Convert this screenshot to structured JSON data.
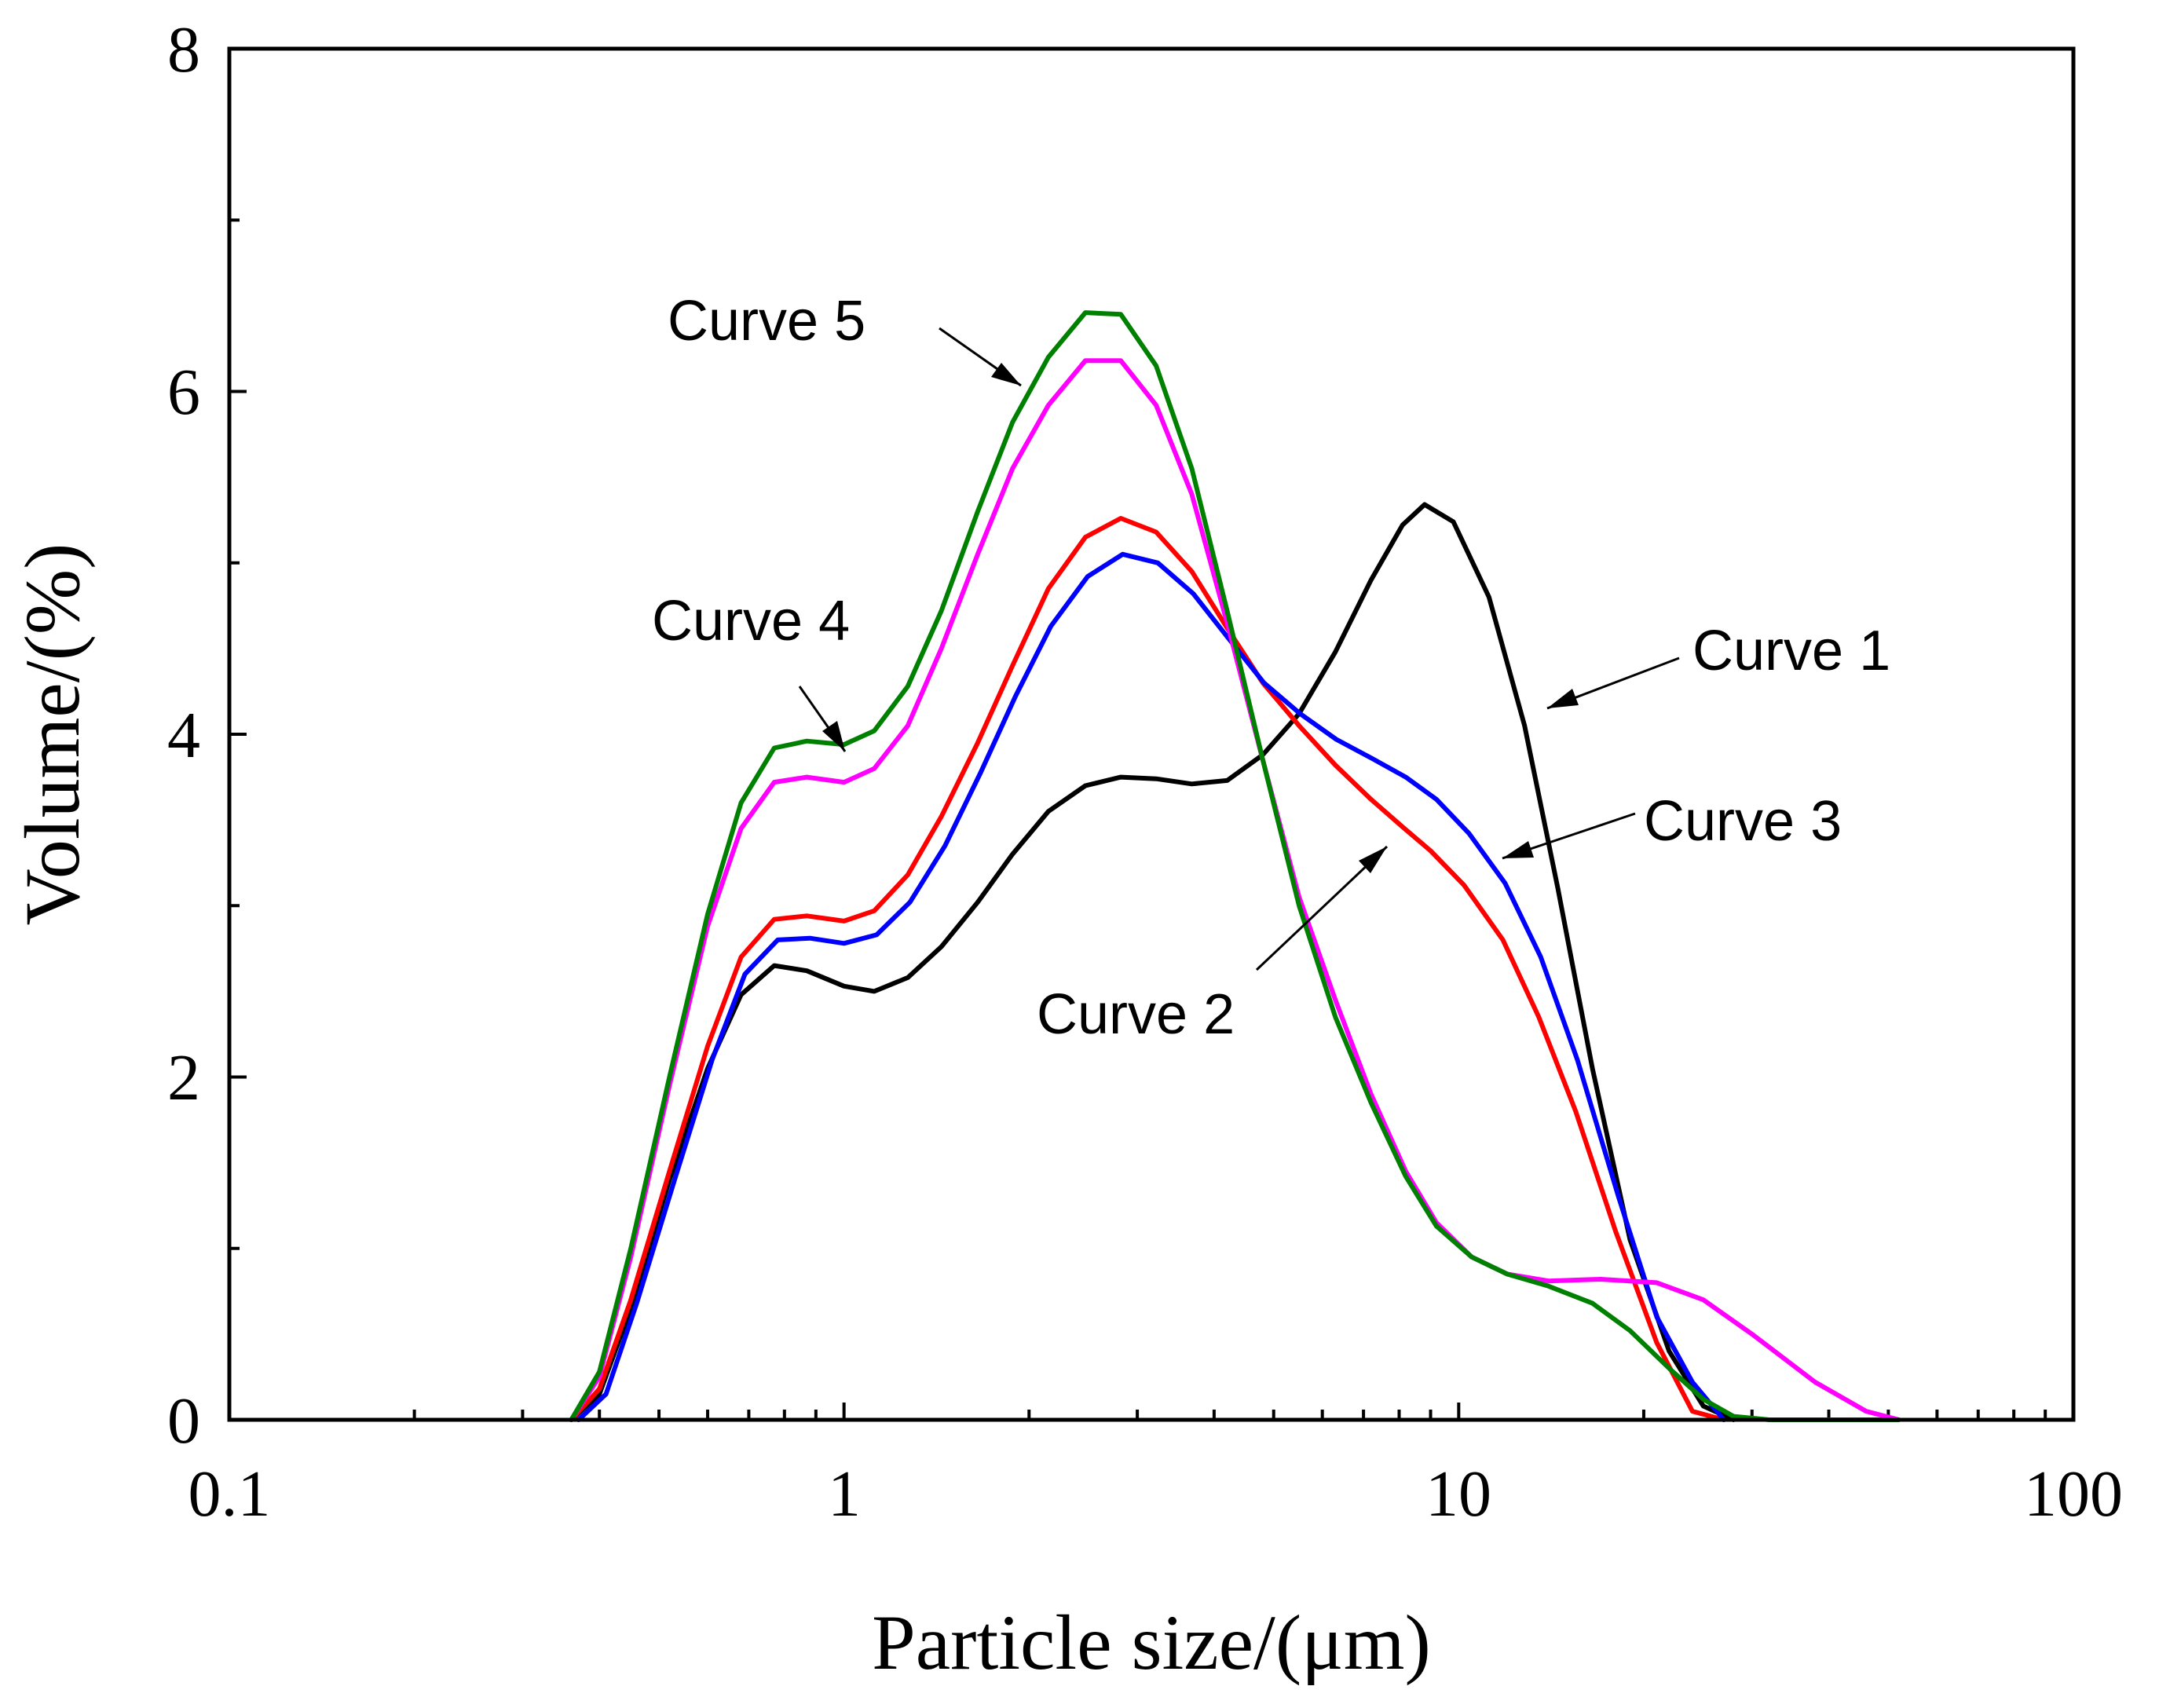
{
  "chart_data": {
    "type": "line",
    "title": "",
    "xlabel": "Particle size/(μm)",
    "ylabel": "Volume/(%)",
    "xscale": "log",
    "xlim": [
      0.1,
      100
    ],
    "ylim": [
      0,
      8
    ],
    "x_ticks": [
      0.1,
      1,
      10,
      100
    ],
    "x_tick_labels": [
      "0.1",
      "1",
      "10",
      "100"
    ],
    "y_ticks": [
      0,
      2,
      4,
      6,
      8
    ],
    "y_tick_labels": [
      "0",
      "2",
      "4",
      "6",
      "8"
    ],
    "grid": false,
    "legend": "none",
    "series": [
      {
        "name": "Curve 1",
        "color": "#000000",
        "points": [
          [
            0.36,
            0
          ],
          [
            0.4,
            0.15
          ],
          [
            0.45,
            0.65
          ],
          [
            0.52,
            1.4
          ],
          [
            0.6,
            2.05
          ],
          [
            0.68,
            2.48
          ],
          [
            0.77,
            2.65
          ],
          [
            0.87,
            2.62
          ],
          [
            1.0,
            2.53
          ],
          [
            1.12,
            2.5
          ],
          [
            1.27,
            2.58
          ],
          [
            1.44,
            2.76
          ],
          [
            1.65,
            3.02
          ],
          [
            1.88,
            3.3
          ],
          [
            2.15,
            3.55
          ],
          [
            2.47,
            3.7
          ],
          [
            2.82,
            3.75
          ],
          [
            3.22,
            3.74
          ],
          [
            3.68,
            3.71
          ],
          [
            4.2,
            3.73
          ],
          [
            4.8,
            3.88
          ],
          [
            5.5,
            4.12
          ],
          [
            6.3,
            4.48
          ],
          [
            7.2,
            4.9
          ],
          [
            8.1,
            5.22
          ],
          [
            8.8,
            5.34
          ],
          [
            9.8,
            5.24
          ],
          [
            11.2,
            4.8
          ],
          [
            12.8,
            4.05
          ],
          [
            14.5,
            3.1
          ],
          [
            16.5,
            2.05
          ],
          [
            19.0,
            1.05
          ],
          [
            22.0,
            0.4
          ],
          [
            25.0,
            0.08
          ],
          [
            28.0,
            0
          ]
        ]
      },
      {
        "name": "Curve 2",
        "color": "#ff0000",
        "points": [
          [
            0.36,
            0
          ],
          [
            0.4,
            0.18
          ],
          [
            0.45,
            0.7
          ],
          [
            0.52,
            1.45
          ],
          [
            0.6,
            2.18
          ],
          [
            0.68,
            2.7
          ],
          [
            0.77,
            2.92
          ],
          [
            0.87,
            2.94
          ],
          [
            1.0,
            2.91
          ],
          [
            1.12,
            2.97
          ],
          [
            1.27,
            3.18
          ],
          [
            1.44,
            3.52
          ],
          [
            1.65,
            3.95
          ],
          [
            1.88,
            4.4
          ],
          [
            2.15,
            4.85
          ],
          [
            2.47,
            5.15
          ],
          [
            2.82,
            5.26
          ],
          [
            3.22,
            5.18
          ],
          [
            3.68,
            4.95
          ],
          [
            4.2,
            4.62
          ],
          [
            4.8,
            4.3
          ],
          [
            5.5,
            4.05
          ],
          [
            6.3,
            3.82
          ],
          [
            7.2,
            3.62
          ],
          [
            8.1,
            3.46
          ],
          [
            9.0,
            3.32
          ],
          [
            10.2,
            3.12
          ],
          [
            11.8,
            2.8
          ],
          [
            13.5,
            2.35
          ],
          [
            15.5,
            1.8
          ],
          [
            18.0,
            1.1
          ],
          [
            21.0,
            0.45
          ],
          [
            24.0,
            0.05
          ],
          [
            27.0,
            0
          ]
        ]
      },
      {
        "name": "Curve 3",
        "color": "#0000ff",
        "points": [
          [
            0.37,
            0
          ],
          [
            0.41,
            0.15
          ],
          [
            0.46,
            0.68
          ],
          [
            0.53,
            1.4
          ],
          [
            0.61,
            2.1
          ],
          [
            0.69,
            2.6
          ],
          [
            0.78,
            2.8
          ],
          [
            0.88,
            2.81
          ],
          [
            1.0,
            2.78
          ],
          [
            1.13,
            2.83
          ],
          [
            1.28,
            3.02
          ],
          [
            1.46,
            3.35
          ],
          [
            1.67,
            3.78
          ],
          [
            1.9,
            4.22
          ],
          [
            2.17,
            4.63
          ],
          [
            2.49,
            4.92
          ],
          [
            2.84,
            5.05
          ],
          [
            3.24,
            5.0
          ],
          [
            3.7,
            4.82
          ],
          [
            4.22,
            4.56
          ],
          [
            4.82,
            4.3
          ],
          [
            5.52,
            4.12
          ],
          [
            6.32,
            3.97
          ],
          [
            7.22,
            3.86
          ],
          [
            8.2,
            3.75
          ],
          [
            9.2,
            3.62
          ],
          [
            10.4,
            3.42
          ],
          [
            11.9,
            3.13
          ],
          [
            13.6,
            2.7
          ],
          [
            15.6,
            2.1
          ],
          [
            18.2,
            1.3
          ],
          [
            21.0,
            0.6
          ],
          [
            24.0,
            0.22
          ],
          [
            27.0,
            0
          ]
        ]
      },
      {
        "name": "Curve 4",
        "color": "#ff00ff",
        "points": [
          [
            0.36,
            0
          ],
          [
            0.4,
            0.25
          ],
          [
            0.45,
            0.95
          ],
          [
            0.52,
            1.95
          ],
          [
            0.6,
            2.88
          ],
          [
            0.68,
            3.45
          ],
          [
            0.77,
            3.72
          ],
          [
            0.87,
            3.75
          ],
          [
            1.0,
            3.72
          ],
          [
            1.12,
            3.8
          ],
          [
            1.27,
            4.05
          ],
          [
            1.44,
            4.5
          ],
          [
            1.65,
            5.05
          ],
          [
            1.88,
            5.55
          ],
          [
            2.15,
            5.92
          ],
          [
            2.47,
            6.18
          ],
          [
            2.82,
            6.18
          ],
          [
            3.22,
            5.92
          ],
          [
            3.68,
            5.4
          ],
          [
            4.2,
            4.65
          ],
          [
            4.8,
            3.85
          ],
          [
            5.5,
            3.05
          ],
          [
            6.3,
            2.45
          ],
          [
            7.2,
            1.9
          ],
          [
            8.2,
            1.45
          ],
          [
            9.2,
            1.15
          ],
          [
            10.5,
            0.95
          ],
          [
            12.0,
            0.85
          ],
          [
            14.0,
            0.81
          ],
          [
            17.0,
            0.82
          ],
          [
            21.0,
            0.8
          ],
          [
            25.0,
            0.7
          ],
          [
            30.0,
            0.5
          ],
          [
            38.0,
            0.22
          ],
          [
            46.0,
            0.05
          ],
          [
            52.0,
            0
          ]
        ]
      },
      {
        "name": "Curve 5",
        "color": "#008000",
        "points": [
          [
            0.36,
            0
          ],
          [
            0.4,
            0.28
          ],
          [
            0.45,
            1.0
          ],
          [
            0.52,
            2.0
          ],
          [
            0.6,
            2.95
          ],
          [
            0.68,
            3.6
          ],
          [
            0.77,
            3.92
          ],
          [
            0.87,
            3.96
          ],
          [
            1.0,
            3.94
          ],
          [
            1.12,
            4.02
          ],
          [
            1.27,
            4.28
          ],
          [
            1.44,
            4.72
          ],
          [
            1.65,
            5.3
          ],
          [
            1.88,
            5.82
          ],
          [
            2.15,
            6.2
          ],
          [
            2.47,
            6.46
          ],
          [
            2.82,
            6.45
          ],
          [
            3.22,
            6.15
          ],
          [
            3.68,
            5.55
          ],
          [
            4.2,
            4.72
          ],
          [
            4.8,
            3.85
          ],
          [
            5.5,
            3.0
          ],
          [
            6.3,
            2.35
          ],
          [
            7.2,
            1.85
          ],
          [
            8.2,
            1.42
          ],
          [
            9.2,
            1.13
          ],
          [
            10.5,
            0.95
          ],
          [
            12.0,
            0.85
          ],
          [
            14.0,
            0.78
          ],
          [
            16.5,
            0.68
          ],
          [
            19.0,
            0.52
          ],
          [
            22.0,
            0.3
          ],
          [
            25.0,
            0.12
          ],
          [
            28.0,
            0.02
          ],
          [
            32.0,
            0
          ],
          [
            52.0,
            0
          ]
        ]
      }
    ],
    "annotations": [
      {
        "text": "Curve 1",
        "target_x": 13.5,
        "target_y": 4.12
      },
      {
        "text": "Curve 2",
        "target_x": 8.3,
        "target_y": 3.4
      },
      {
        "text": "Curve 3",
        "target_x": 12.8,
        "target_y": 3.3
      },
      {
        "text": "Curve 4",
        "target_x": 0.87,
        "target_y": 3.86
      },
      {
        "text": "Curve 5",
        "target_x": 1.7,
        "target_y": 6.0
      }
    ]
  }
}
